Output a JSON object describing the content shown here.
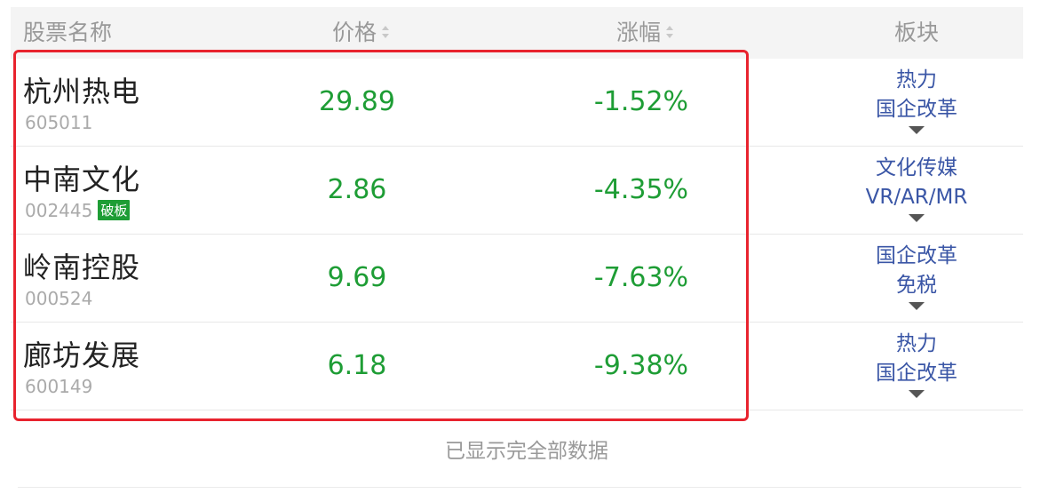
{
  "header": {
    "name_label": "股票名称",
    "price_label": "价格",
    "change_label": "涨幅",
    "sector_label": "板块"
  },
  "rows": [
    {
      "name": "杭州热电",
      "code": "605011",
      "badge": "",
      "price": "29.89",
      "change": "-1.52%",
      "sectors": [
        "热力",
        "国企改革"
      ]
    },
    {
      "name": "中南文化",
      "code": "002445",
      "badge": "破板",
      "price": "2.86",
      "change": "-4.35%",
      "sectors": [
        "文化传媒",
        "VR/AR/MR"
      ]
    },
    {
      "name": "岭南控股",
      "code": "000524",
      "badge": "",
      "price": "9.69",
      "change": "-7.63%",
      "sectors": [
        "国企改革",
        "免税"
      ]
    },
    {
      "name": "廊坊发展",
      "code": "600149",
      "badge": "",
      "price": "6.18",
      "change": "-9.38%",
      "sectors": [
        "热力",
        "国企改革"
      ]
    }
  ],
  "footer": {
    "text": "已显示完全部数据"
  },
  "colors": {
    "down": "#1e9d35",
    "sector_link": "#3a56a6",
    "highlight_border": "#e8232e",
    "header_bg": "#f4f4f4"
  },
  "icons": {
    "sort": "sort-icon",
    "expand": "caret-down-icon"
  }
}
